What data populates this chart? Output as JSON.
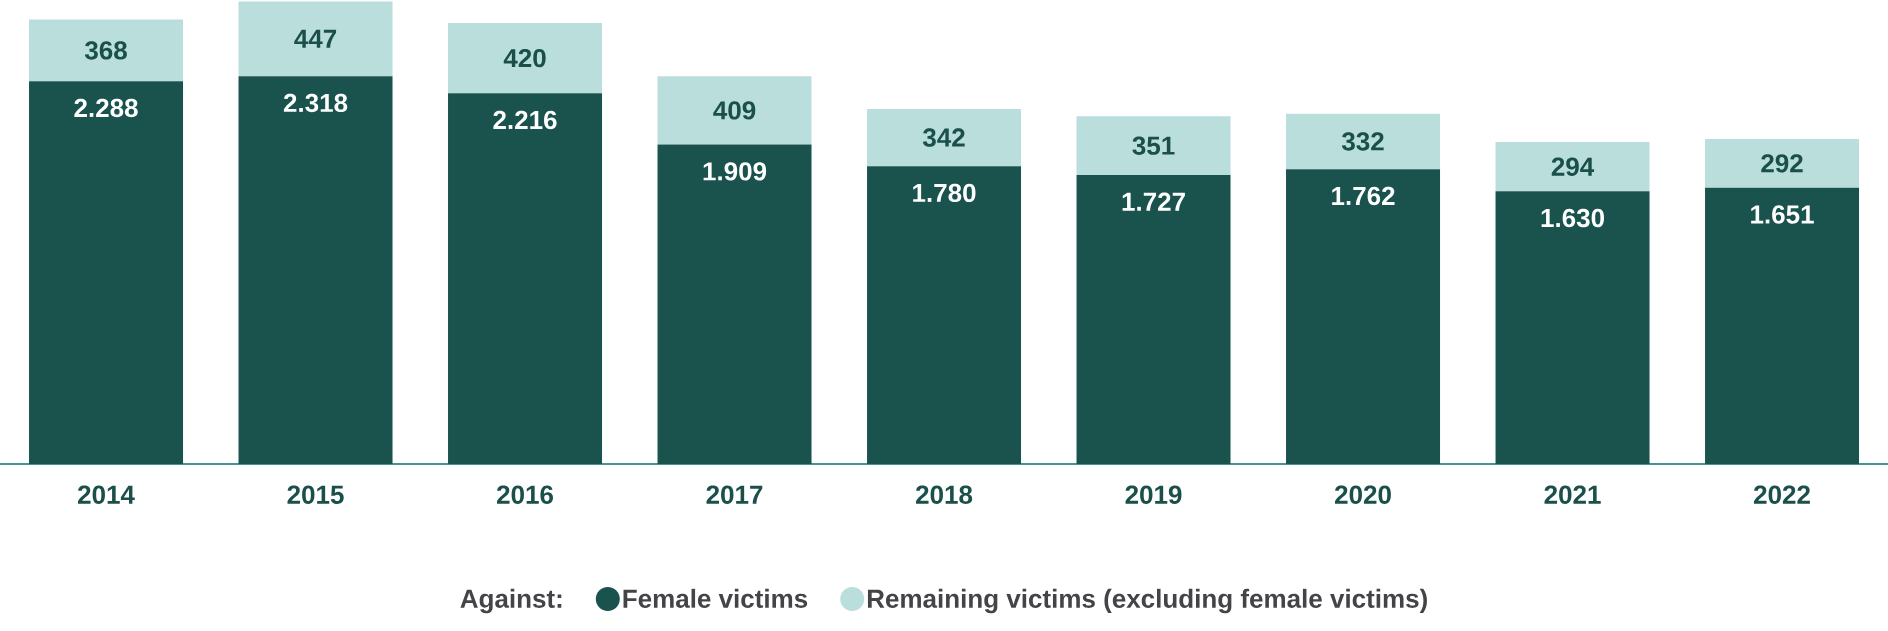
{
  "chart_data": {
    "type": "bar",
    "stacked": true,
    "legend_title": "Against:",
    "legend": "bottom",
    "categories": [
      "2014",
      "2015",
      "2016",
      "2017",
      "2018",
      "2019",
      "2020",
      "2021",
      "2022"
    ],
    "series": [
      {
        "name": "Female victims",
        "color": "#1a534e",
        "values": [
          2288,
          2318,
          2216,
          1909,
          1780,
          1727,
          1762,
          1630,
          1651
        ],
        "value_labels": [
          "2.288",
          "2.318",
          "2.216",
          "1.909",
          "1.780",
          "1.727",
          "1.762",
          "1.630",
          "1.651"
        ]
      },
      {
        "name": "Remaining victims (excluding female victims)",
        "color": "#badedc",
        "values": [
          368,
          447,
          420,
          409,
          342,
          351,
          332,
          294,
          292
        ],
        "value_labels": [
          "368",
          "447",
          "420",
          "409",
          "342",
          "351",
          "332",
          "294",
          "292"
        ]
      }
    ]
  }
}
